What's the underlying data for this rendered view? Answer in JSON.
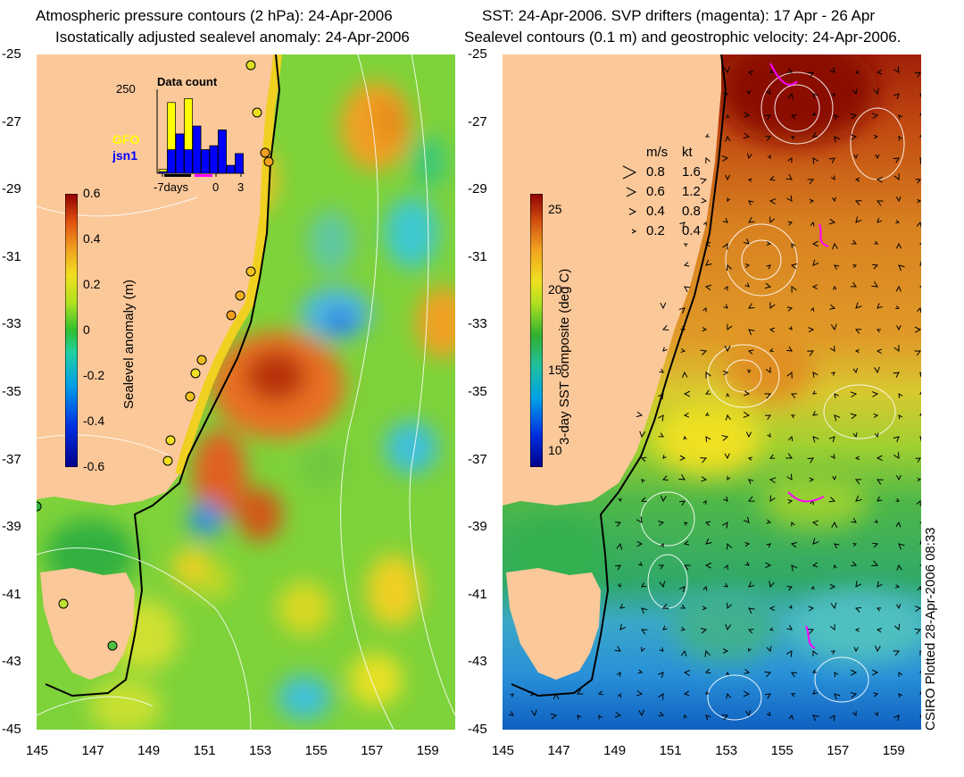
{
  "left_panel": {
    "title_line1": "Atmospheric pressure contours (2 hPa): 24-Apr-2006",
    "title_line2": "Isostatically adjusted sealevel anomaly: 24-Apr-2006",
    "colorbar": {
      "label": "Sealevel anomaly (m)",
      "ticks": [
        "0.6",
        "0.4",
        "0.2",
        "0",
        "-0.2",
        "-0.4",
        "-0.6"
      ],
      "range": [
        -0.6,
        0.6
      ]
    },
    "inset": {
      "title": "Data count",
      "y_max_label": "250",
      "x_labels": [
        "-7days",
        "0",
        "3"
      ],
      "series": [
        {
          "name": "GFO",
          "color": "#ffff00"
        },
        {
          "name": "jsn1",
          "color": "#0000ff"
        }
      ]
    }
  },
  "right_panel": {
    "title_line1": "SST: 24-Apr-2006. SVP drifters (magenta): 17 Apr - 26 Apr",
    "title_line2": "Sealevel contours (0.1 m) and geostrophic velocity: 24-Apr-2006.",
    "colorbar": {
      "label": "3-day SST composite (deg C)",
      "ticks": [
        "25",
        "20",
        "15",
        "10"
      ],
      "range": [
        9,
        26
      ]
    },
    "velocity_legend": {
      "header_ms": "m/s",
      "header_kt": "kt",
      "rows": [
        {
          "ms": "0.8",
          "kt": "1.6"
        },
        {
          "ms": "0.6",
          "kt": "1.2"
        },
        {
          "ms": "0.4",
          "kt": "0.8"
        },
        {
          "ms": "0.2",
          "kt": "0.4"
        }
      ]
    }
  },
  "axes": {
    "lat_labels": [
      "-25",
      "-27",
      "-29",
      "-31",
      "-33",
      "-35",
      "-37",
      "-39",
      "-41",
      "-43",
      "-45"
    ],
    "lon_labels": [
      "145",
      "147",
      "149",
      "151",
      "153",
      "155",
      "157",
      "159"
    ],
    "lat_range": [
      -45,
      -25
    ],
    "lon_range": [
      145,
      160
    ]
  },
  "credit": "CSIRO Plotted 28-Apr-2006 08:33",
  "colors": {
    "land": "#fbc89a",
    "coastline": "#000000",
    "contour": "#ffffff",
    "drifter": "#ff00ff"
  }
}
